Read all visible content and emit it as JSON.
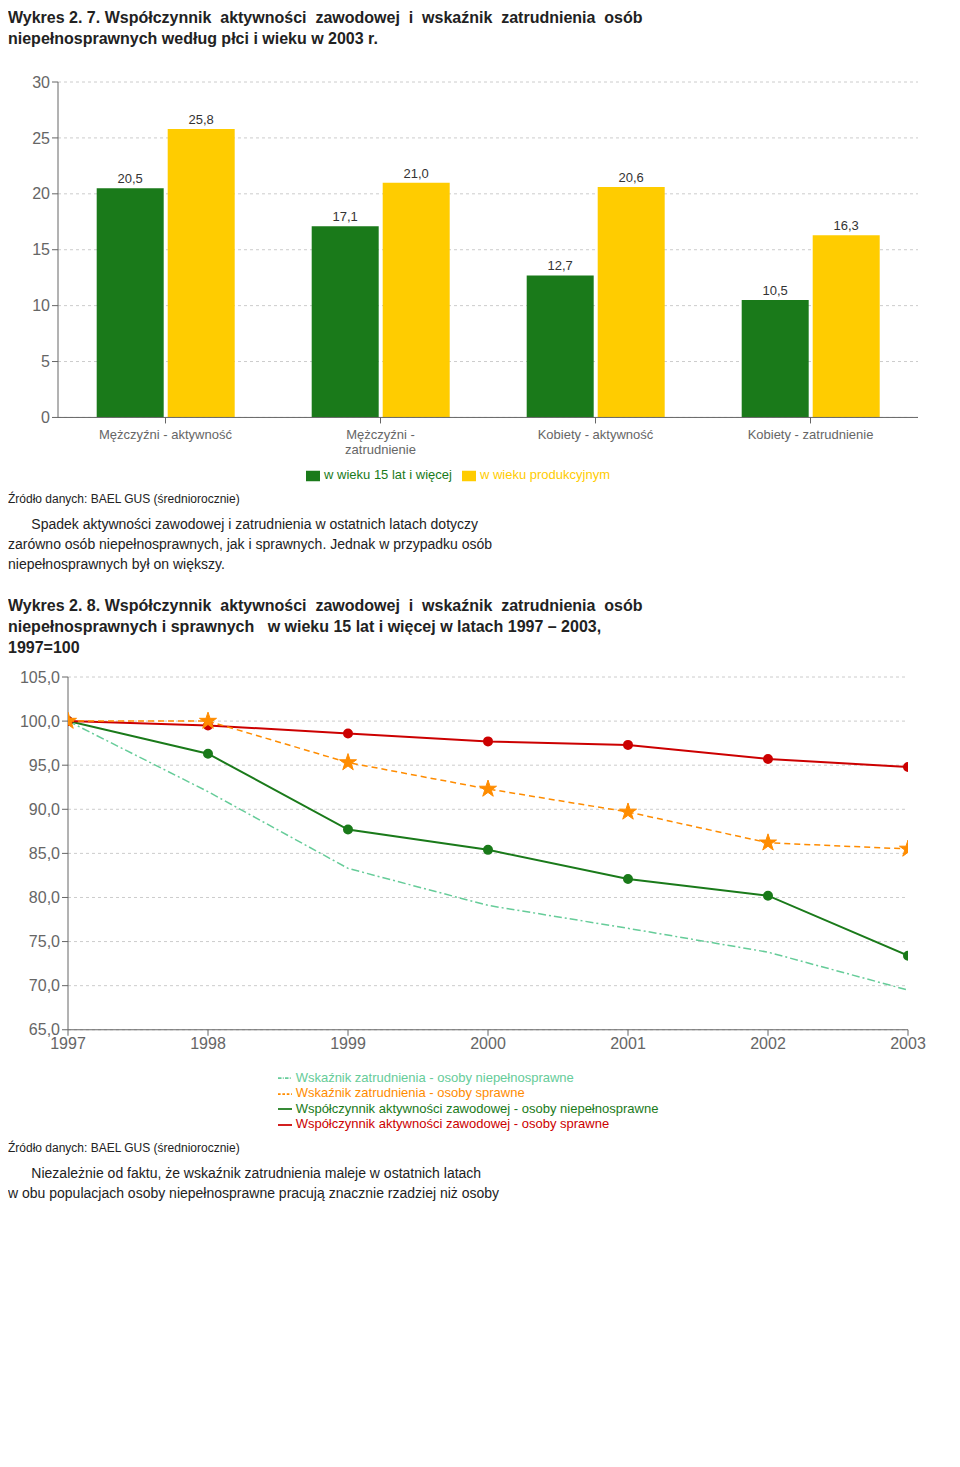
{
  "chart_data": [
    {
      "type": "bar",
      "title": "Wykres 2. 7. Współczynnik  aktywności  zawodowej  i  wskaźnik  zatrudnienia  osób\nniepełnosprawnych według płci i wieku w 2003 r.",
      "categories": [
        "Mężczyźni - aktywność",
        "Mężczyźni -\nzatrudnienie",
        "Kobiety - aktywność",
        "Kobiety - zatrudnienie"
      ],
      "series": [
        {
          "name": "w wieku 15 lat i więcej",
          "color": "#1a7a1a",
          "values": [
            20.5,
            17.1,
            12.7,
            10.5
          ],
          "value_labels": [
            "20,5",
            "17,1",
            "12,7",
            "10,5"
          ]
        },
        {
          "name": "w wieku produkcyjnym",
          "color": "#ffcc00",
          "values": [
            25.8,
            21.0,
            20.6,
            16.3
          ],
          "value_labels": [
            "25,8",
            "21,0",
            "20,6",
            "16,3"
          ]
        }
      ],
      "ylim": [
        0,
        30
      ],
      "yticks": [
        0,
        5,
        10,
        15,
        20,
        25,
        30
      ],
      "grid": true,
      "legend": "bottom",
      "data_labels": true,
      "annotations": [
        "Źródło danych: BAEL GUS (średniorocznie)",
        "      Spadek aktywności zawodowej i zatrudnienia w ostatnich latach dotyczy",
        "zarówno osób niepełnosprawnych, jak i sprawnych. Jednak w przypadku osób",
        "niepełnosprawnych był on większy."
      ]
    },
    {
      "type": "line",
      "title": "Wykres 2. 8. Współczynnik  aktywności  zawodowej  i  wskaźnik  zatrudnienia  osób\nniepełnosprawnych i sprawnych   w wieku 15 lat i więcej w latach 1997 – 2003,\n1997=100",
      "x": [
        1997,
        1998,
        1999,
        2000,
        2001,
        2002,
        2003
      ],
      "xlim": [
        1997,
        2003
      ],
      "xticks": [
        1997,
        1998,
        1999,
        2000,
        2001,
        2002,
        2003
      ],
      "series": [
        {
          "name": "Współczynnik aktywności zawodowej - osoby niepełnosprawne",
          "color": "#1a7a1a",
          "marker": "circle",
          "line_style": "solid",
          "values": [
            100.0,
            96.3,
            87.7,
            85.4,
            82.1,
            80.2,
            73.4
          ]
        },
        {
          "name": "Wskaźnik zatrudnienia - osoby niepełnosprawne",
          "color": "#66cc99",
          "marker": "none",
          "line_style": "dashdot",
          "values": [
            100.0,
            92.0,
            83.3,
            79.1,
            76.5,
            73.8,
            69.5
          ]
        },
        {
          "name": "Współczynnik aktywności zawodowej - osoby sprawne",
          "color": "#cc0000",
          "marker": "circle",
          "line_style": "solid",
          "values": [
            100.0,
            99.5,
            98.6,
            97.7,
            97.3,
            95.7,
            94.8
          ]
        },
        {
          "name": "Wskaźnik zatrudnienia - osoby sprawne",
          "color": "#ff8c00",
          "marker": "star",
          "line_style": "dashed",
          "values": [
            100.0,
            100.0,
            95.3,
            92.3,
            89.7,
            86.2,
            85.5
          ]
        }
      ],
      "ylim": [
        65.0,
        105.0
      ],
      "yticks": [
        {
          "value": 65.0,
          "label": "65,0"
        },
        {
          "value": 70.0,
          "label": "70,0"
        },
        {
          "value": 75.0,
          "label": "75,0"
        },
        {
          "value": 80.0,
          "label": "80,0"
        },
        {
          "value": 85.0,
          "label": "85,0"
        },
        {
          "value": 90.0,
          "label": "90,0"
        },
        {
          "value": 95.0,
          "label": "95,0"
        },
        {
          "value": 100.0,
          "label": "100,0"
        },
        {
          "value": 105.0,
          "label": "105,0"
        }
      ],
      "grid": true,
      "legend": "bottom",
      "annotations": [
        "Źródło danych: BAEL GUS (średniorocznie)",
        "      Niezależnie od faktu, że wskaźnik zatrudnienia maleje w ostatnich latach",
        "w obu populacjach osoby niepełnosprawne pracują znacznie rzadziej niż osoby"
      ]
    }
  ]
}
